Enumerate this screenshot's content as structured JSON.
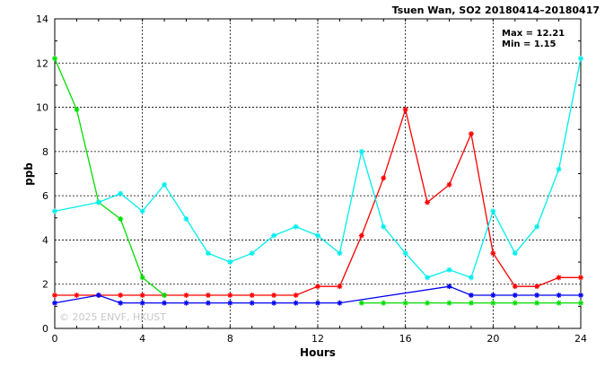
{
  "chart_data": {
    "type": "line",
    "title": "Tsuen Wan, SO2 20180414–20180417",
    "xlabel": "Hours",
    "ylabel": "ppb",
    "xlim": [
      0,
      24
    ],
    "ylim": [
      0,
      14
    ],
    "x_ticks": [
      "0",
      "4",
      "8",
      "12",
      "16",
      "20",
      "24"
    ],
    "y_ticks": [
      "0",
      "2",
      "4",
      "6",
      "8",
      "10",
      "12",
      "14"
    ],
    "grid": true,
    "annotations": {
      "max": "Max = 12.21",
      "min": "Min =  1.15"
    },
    "watermark": "© 2025  ENVF, HKUST",
    "series": [
      {
        "color": "#ff0000",
        "x": [
          0,
          1,
          2,
          3,
          4,
          5,
          6,
          7,
          8,
          9,
          10,
          11,
          12,
          13,
          14,
          15,
          16,
          17,
          18,
          19,
          20,
          21,
          22,
          23,
          24
        ],
        "y": [
          1.5,
          1.5,
          1.5,
          1.5,
          1.5,
          1.5,
          1.5,
          1.5,
          1.5,
          1.5,
          1.5,
          1.5,
          1.9,
          1.9,
          4.2,
          6.8,
          9.9,
          5.7,
          6.5,
          8.8,
          3.4,
          1.9,
          1.9,
          2.3,
          2.3
        ]
      },
      {
        "color": "#00dd00",
        "x": [
          0,
          1,
          2,
          3,
          4,
          5,
          6,
          7,
          8,
          9,
          10,
          11,
          12,
          13,
          14,
          15,
          16,
          17,
          18,
          19,
          20,
          21,
          22,
          23,
          24
        ],
        "y": [
          12.21,
          9.9,
          5.7,
          4.95,
          2.3,
          1.5,
          null,
          null,
          null,
          null,
          null,
          null,
          null,
          null,
          1.15,
          1.15,
          1.15,
          1.15,
          1.15,
          1.15,
          1.15,
          1.15,
          1.15,
          1.15,
          1.15
        ]
      },
      {
        "color": "#0000ee",
        "x": [
          0,
          1,
          2,
          3,
          4,
          5,
          6,
          7,
          8,
          9,
          10,
          11,
          12,
          13,
          14,
          15,
          16,
          17,
          18,
          19,
          20,
          21,
          22,
          23,
          24
        ],
        "y": [
          1.15,
          null,
          1.5,
          1.15,
          1.15,
          1.15,
          1.15,
          1.15,
          1.15,
          1.15,
          1.15,
          1.15,
          1.15,
          1.15,
          null,
          null,
          null,
          null,
          1.9,
          1.5,
          1.5,
          1.5,
          1.5,
          1.5,
          1.5
        ]
      },
      {
        "color": "#00eeee",
        "x": [
          0,
          1,
          2,
          3,
          4,
          5,
          6,
          7,
          8,
          9,
          10,
          11,
          12,
          13,
          14,
          15,
          16,
          17,
          18,
          19,
          20,
          21,
          22,
          23,
          24
        ],
        "y": [
          5.3,
          null,
          5.7,
          6.1,
          5.3,
          6.5,
          4.95,
          3.4,
          3.0,
          3.4,
          4.2,
          4.6,
          4.2,
          3.4,
          8.0,
          4.6,
          3.4,
          2.3,
          2.65,
          2.3,
          5.3,
          3.4,
          4.6,
          7.2,
          12.21
        ]
      }
    ]
  }
}
